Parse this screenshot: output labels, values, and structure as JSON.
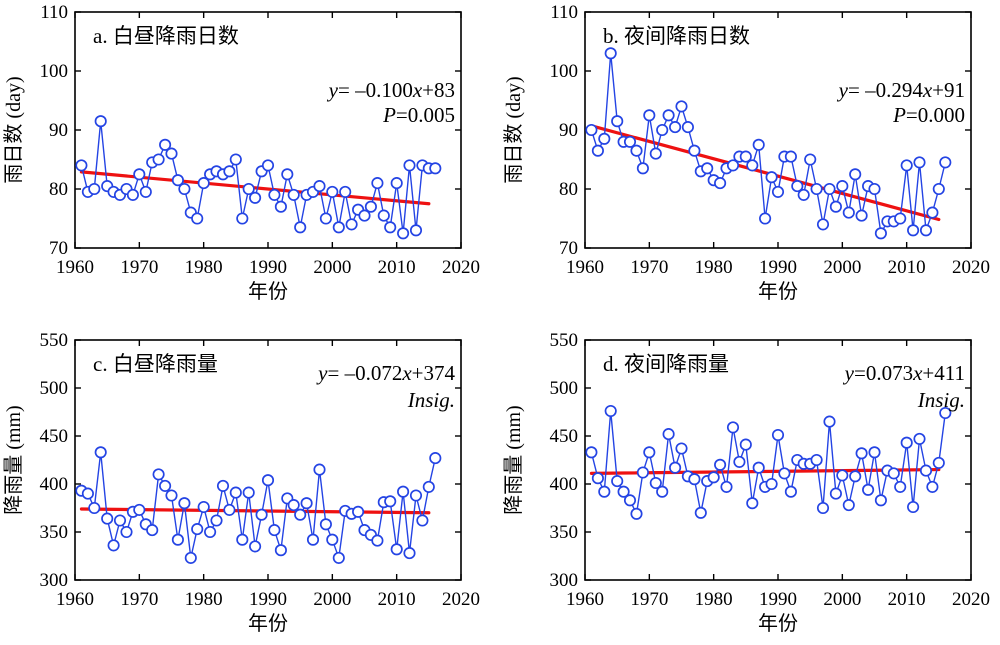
{
  "figure": {
    "background": "#ffffff",
    "series_color": "#2444e4",
    "trend_color": "#ee1111",
    "axis_color": "#000000"
  },
  "chart_data": {
    "type": "line",
    "x_label": "年份",
    "x": [
      1961,
      1962,
      1963,
      1964,
      1965,
      1966,
      1967,
      1968,
      1969,
      1970,
      1971,
      1972,
      1973,
      1974,
      1975,
      1976,
      1977,
      1978,
      1979,
      1980,
      1981,
      1982,
      1983,
      1984,
      1985,
      1986,
      1987,
      1988,
      1989,
      1990,
      1991,
      1992,
      1993,
      1994,
      1995,
      1996,
      1997,
      1998,
      1999,
      2000,
      2001,
      2002,
      2003,
      2004,
      2005,
      2006,
      2007,
      2008,
      2009,
      2010,
      2011,
      2012,
      2013,
      2014,
      2015,
      2016
    ],
    "xlim": [
      1960,
      2020
    ],
    "xticks": [
      1960,
      1970,
      1980,
      1990,
      2000,
      2010,
      2020
    ],
    "panels": [
      {
        "id": "a",
        "title": "a. 白昼降雨日数",
        "ylabel": "雨日数 (day)",
        "xlabel": "年份",
        "ylim": [
          70,
          110
        ],
        "yticks": [
          70,
          80,
          90,
          100,
          110
        ],
        "values": [
          84,
          79.5,
          80,
          91.5,
          80.5,
          79.5,
          79,
          80,
          79,
          82.5,
          79.5,
          84.5,
          85,
          87.5,
          86,
          81.5,
          80,
          76,
          75,
          81,
          82.5,
          83,
          82.5,
          83,
          85,
          75,
          80,
          78.5,
          83,
          84,
          79,
          77,
          82.5,
          79,
          73.5,
          79,
          79.5,
          80.5,
          75,
          79.5,
          73.5,
          79.5,
          74,
          76.5,
          75.5,
          77,
          81,
          75.5,
          73.5,
          81,
          72.5,
          84,
          73,
          84,
          83.5,
          83.5
        ],
        "trend": {
          "slope": -0.1,
          "intercept": 83,
          "equation": "y= –0.100x+83",
          "significance": "P=0.005"
        }
      },
      {
        "id": "b",
        "title": "b. 夜间降雨日数",
        "ylabel": "雨日数 (day)",
        "xlabel": "年份",
        "ylim": [
          70,
          110
        ],
        "yticks": [
          70,
          80,
          90,
          100,
          110
        ],
        "values": [
          90,
          86.5,
          88.5,
          103,
          91.5,
          88,
          88,
          86.5,
          83.5,
          92.5,
          86,
          90,
          92.5,
          90.5,
          94,
          90.5,
          86.5,
          83,
          83.5,
          81.5,
          81,
          83.5,
          84,
          85.5,
          85.5,
          84,
          87.5,
          75,
          82,
          79.5,
          85.5,
          85.5,
          80.5,
          79,
          85,
          80,
          74,
          80,
          77,
          80.5,
          76,
          82.5,
          75.5,
          80.5,
          80,
          72.5,
          74.5,
          74.5,
          75,
          84,
          73,
          84.5,
          73,
          76,
          80,
          84.5
        ],
        "trend": {
          "slope": -0.294,
          "intercept": 91,
          "equation": "y= –0.294x+91",
          "significance": "P=0.000"
        }
      },
      {
        "id": "c",
        "title": "c. 白昼降雨量",
        "ylabel": "降雨量 (mm)",
        "xlabel": "年份",
        "ylim": [
          300,
          550
        ],
        "yticks": [
          300,
          350,
          400,
          450,
          500,
          550
        ],
        "values": [
          393,
          390,
          375,
          433,
          364,
          336,
          362,
          350,
          371,
          373,
          358,
          352,
          410,
          398,
          388,
          342,
          380,
          323,
          353,
          376,
          350,
          362,
          398,
          373,
          391,
          342,
          391,
          335,
          368,
          404,
          352,
          331,
          385,
          378,
          368,
          380,
          342,
          415,
          358,
          342,
          323,
          372,
          369,
          371,
          352,
          347,
          341,
          381,
          382,
          332,
          392,
          328,
          388,
          362,
          397,
          427
        ],
        "trend": {
          "slope": -0.072,
          "intercept": 374,
          "equation": "y= –0.072x+374",
          "significance": "Insig."
        }
      },
      {
        "id": "d",
        "title": "d. 夜间降雨量",
        "ylabel": "降雨量 (mm)",
        "xlabel": "年份",
        "ylim": [
          300,
          550
        ],
        "yticks": [
          300,
          350,
          400,
          450,
          500,
          550
        ],
        "values": [
          433,
          406,
          392,
          476,
          403,
          392,
          383,
          369,
          412,
          433,
          401,
          392,
          452,
          417,
          437,
          408,
          405,
          370,
          403,
          407,
          420,
          397,
          459,
          423,
          441,
          380,
          417,
          397,
          400,
          451,
          411,
          392,
          425,
          421,
          421,
          425,
          375,
          465,
          390,
          409,
          378,
          408,
          432,
          394,
          433,
          383,
          414,
          411,
          397,
          443,
          376,
          447,
          414,
          397,
          422,
          474
        ],
        "trend": {
          "slope": 0.073,
          "intercept": 411,
          "equation": "y=0.073x+411",
          "significance": "Insig."
        }
      }
    ]
  }
}
